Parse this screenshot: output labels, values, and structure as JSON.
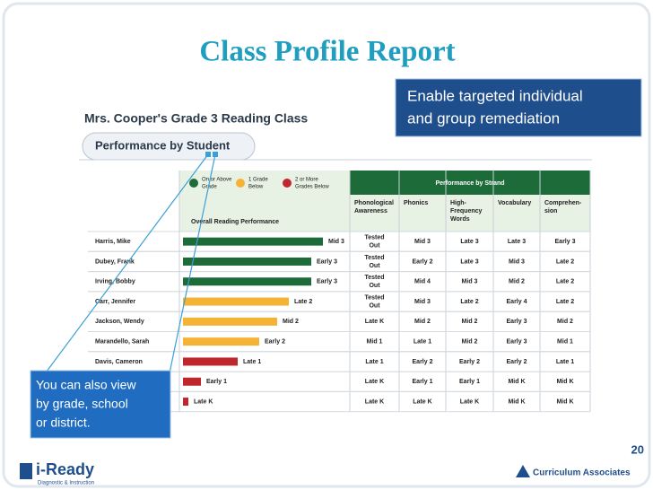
{
  "title": "Class Profile Report",
  "callout_top": [
    "Enable targeted individual",
    "and group remediation"
  ],
  "callout_bottom": [
    "You can also view",
    "by grade, school",
    "or district."
  ],
  "report": {
    "class_name": "Mrs. Cooper's Grade 3 Reading Class",
    "tab": "Performance by Student",
    "legend": [
      {
        "label": [
          "On or Above",
          "Grade"
        ],
        "color": "#1e6b3a"
      },
      {
        "label": [
          "1 Grade",
          "Below"
        ],
        "color": "#f5b335"
      },
      {
        "label": [
          "2 or More",
          "Grades Below"
        ],
        "color": "#c0272d"
      }
    ],
    "overall_header": "Overall Reading Performance",
    "strand_header": "Performance by Strand",
    "strands": [
      [
        "Phonological",
        "Awareness"
      ],
      [
        "Phonics"
      ],
      [
        "High-",
        "Frequency",
        "Words"
      ],
      [
        "Vocabulary"
      ],
      [
        "Comprehen-",
        "sion"
      ]
    ],
    "rows": [
      {
        "name": "Harris, Mike",
        "overall": "Mid 3",
        "color": "#1e6b3a",
        "strands": [
          [
            "Tested",
            "Out"
          ],
          "Mid 3",
          "Late 3",
          "Late 3",
          "Early 3"
        ]
      },
      {
        "name": "Dubey, Frank",
        "overall": "Early 3",
        "color": "#1e6b3a",
        "strands": [
          [
            "Tested",
            "Out"
          ],
          "Early 2",
          "Late 3",
          "Mid 3",
          "Late 2"
        ]
      },
      {
        "name": "Irving, Bobby",
        "overall": "Early 3",
        "color": "#1e6b3a",
        "strands": [
          [
            "Tested",
            "Out"
          ],
          "Mid 4",
          "Mid 3",
          "Mid 2",
          "Late 2"
        ]
      },
      {
        "name": "Carr, Jennifer",
        "overall": "Late 2",
        "color": "#f5b335",
        "strands": [
          [
            "Tested",
            "Out"
          ],
          "Mid 3",
          "Late 2",
          "Early 4",
          "Late 2"
        ]
      },
      {
        "name": "Jackson, Wendy",
        "overall": "Mid 2",
        "color": "#f5b335",
        "strands": [
          "Late K",
          "Mid 2",
          "Mid 2",
          "Early 3",
          "Mid 2"
        ]
      },
      {
        "name": "Marandello, Sarah",
        "overall": "Early 2",
        "color": "#f5b335",
        "strands": [
          "Mid 1",
          "Late 1",
          "Mid 2",
          "Early 3",
          "Mid 1"
        ]
      },
      {
        "name": "Davis, Cameron",
        "overall": "Late 1",
        "color": "#c0272d",
        "strands": [
          "Late 1",
          "Early 2",
          "Early 2",
          "Early 2",
          "Late 1"
        ]
      },
      {
        "name": null,
        "overall": "Early 1",
        "color": "#c0272d",
        "strands": [
          "Late K",
          "Early 1",
          "Early 1",
          "Mid K",
          "Mid K"
        ]
      },
      {
        "name": null,
        "overall": "Late K",
        "color": "#c0272d",
        "strands": [
          "Late K",
          "Late K",
          "Late K",
          "Mid K",
          "Mid K"
        ]
      }
    ]
  },
  "page_number": "20",
  "logo_left": "i-Ready",
  "logo_left_sub": "Diagnostic & Instruction",
  "logo_right": "Curriculum Associates"
}
